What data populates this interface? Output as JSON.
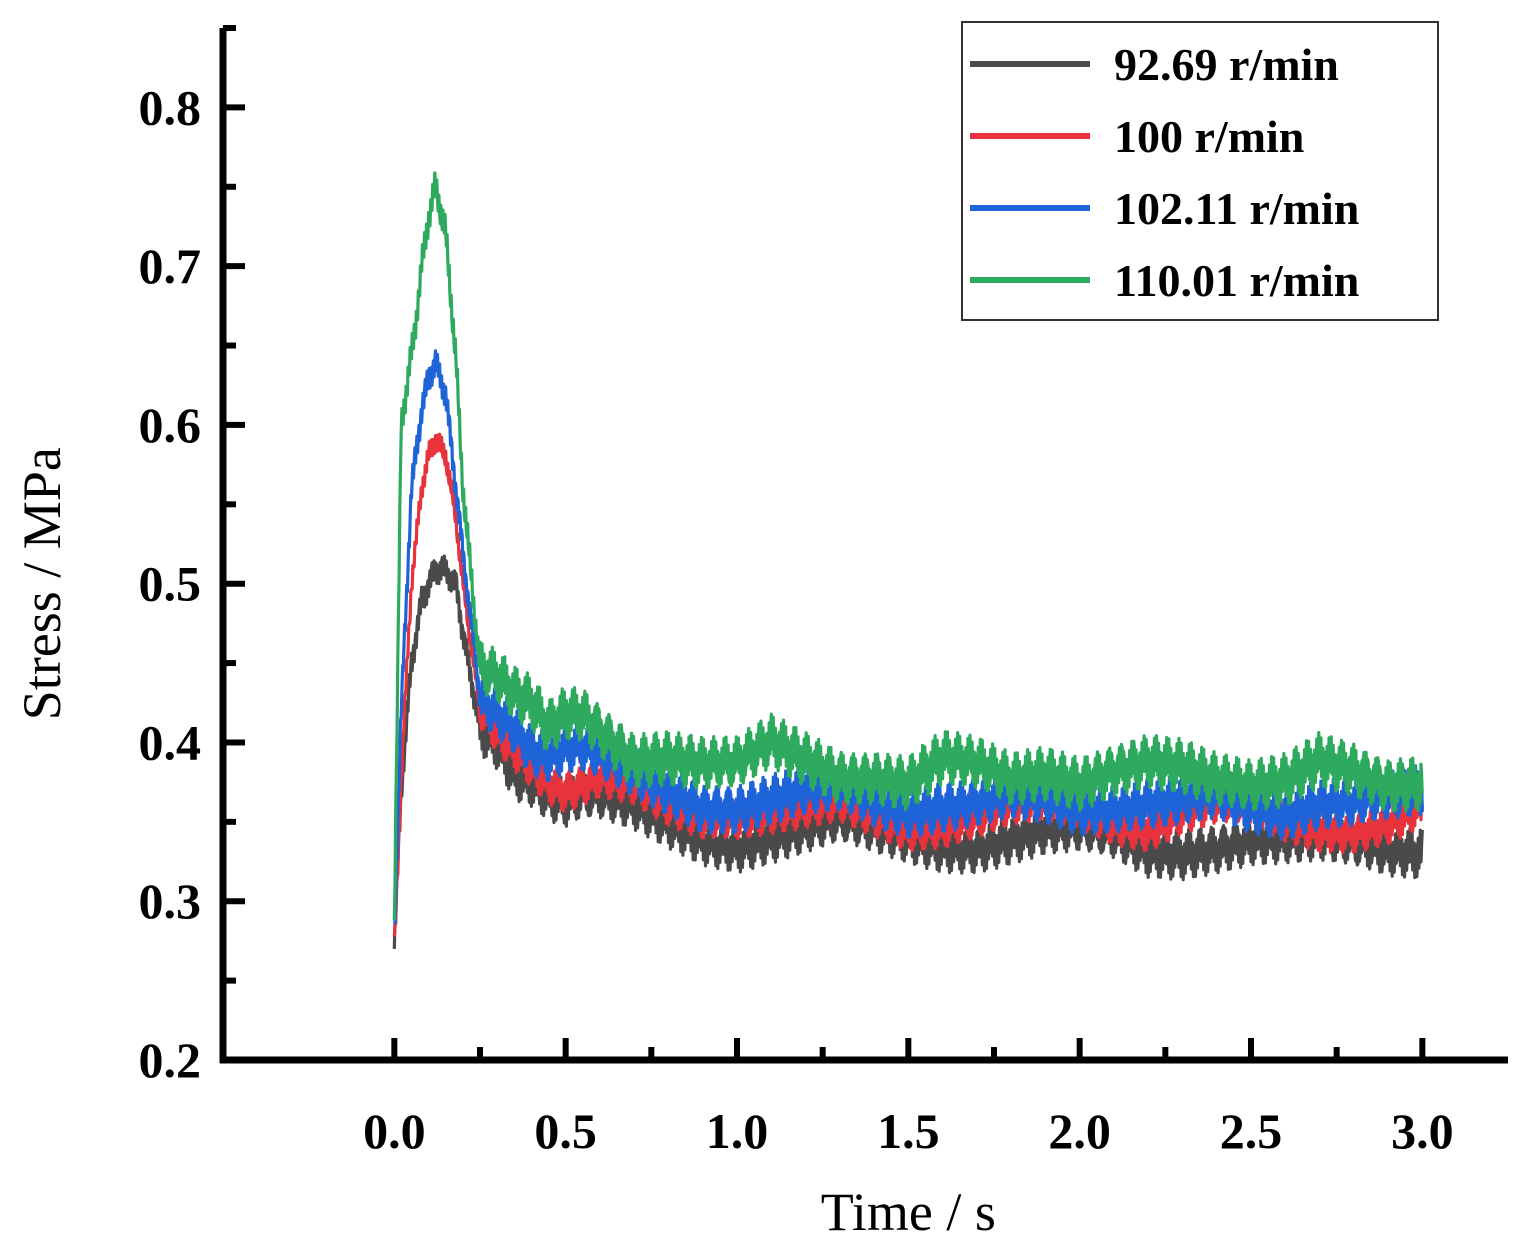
{
  "chart_data": {
    "type": "line",
    "title": "",
    "xlabel": "Time / s",
    "ylabel": "Stress / MPa",
    "xlim": [
      -0.5,
      3.25
    ],
    "ylim": [
      0.2,
      0.85
    ],
    "xticks": [
      0.0,
      0.5,
      1.0,
      1.5,
      2.0,
      2.5,
      3.0
    ],
    "xtick_labels": [
      "0.0",
      "0.5",
      "1.0",
      "1.5",
      "2.0",
      "2.5",
      "3.0"
    ],
    "yticks": [
      0.2,
      0.3,
      0.4,
      0.5,
      0.6,
      0.7,
      0.8
    ],
    "ytick_labels": [
      "0.2",
      "0.3",
      "0.4",
      "0.5",
      "0.6",
      "0.7",
      "0.8"
    ],
    "grid": false,
    "legend_position": "top-right",
    "series": [
      {
        "name": "92.69 r/min",
        "color": "#4a4a4a",
        "noise": 0.012,
        "x": [
          0.0,
          0.02,
          0.05,
          0.08,
          0.1,
          0.12,
          0.15,
          0.18,
          0.2,
          0.25,
          0.3,
          0.35,
          0.4,
          0.45,
          0.5,
          0.55,
          0.6,
          0.7,
          0.8,
          0.9,
          1.0,
          1.1,
          1.2,
          1.3,
          1.4,
          1.5,
          1.6,
          1.7,
          1.8,
          1.9,
          2.0,
          2.1,
          2.2,
          2.3,
          2.4,
          2.5,
          2.6,
          2.7,
          2.8,
          2.9,
          3.0
        ],
        "y": [
          0.27,
          0.37,
          0.45,
          0.49,
          0.5,
          0.51,
          0.51,
          0.5,
          0.47,
          0.41,
          0.4,
          0.38,
          0.375,
          0.365,
          0.36,
          0.365,
          0.365,
          0.36,
          0.35,
          0.34,
          0.335,
          0.34,
          0.345,
          0.35,
          0.345,
          0.34,
          0.335,
          0.335,
          0.34,
          0.345,
          0.345,
          0.34,
          0.33,
          0.33,
          0.335,
          0.34,
          0.34,
          0.34,
          0.335,
          0.33,
          0.33
        ]
      },
      {
        "name": "100 r/min",
        "color": "#e8333d",
        "noise": 0.01,
        "x": [
          0.0,
          0.02,
          0.05,
          0.08,
          0.1,
          0.12,
          0.15,
          0.18,
          0.2,
          0.25,
          0.3,
          0.35,
          0.4,
          0.45,
          0.5,
          0.55,
          0.6,
          0.7,
          0.8,
          0.9,
          1.0,
          1.1,
          1.2,
          1.3,
          1.4,
          1.5,
          1.6,
          1.7,
          1.8,
          1.9,
          2.0,
          2.1,
          2.2,
          2.3,
          2.4,
          2.5,
          2.6,
          2.7,
          2.8,
          2.9,
          3.0
        ],
        "y": [
          0.27,
          0.38,
          0.5,
          0.56,
          0.58,
          0.59,
          0.58,
          0.54,
          0.5,
          0.42,
          0.405,
          0.395,
          0.385,
          0.375,
          0.37,
          0.375,
          0.38,
          0.375,
          0.36,
          0.35,
          0.35,
          0.355,
          0.36,
          0.365,
          0.355,
          0.345,
          0.345,
          0.35,
          0.36,
          0.365,
          0.36,
          0.35,
          0.345,
          0.355,
          0.36,
          0.36,
          0.35,
          0.345,
          0.345,
          0.35,
          0.36
        ]
      },
      {
        "name": "102.11 r/min",
        "color": "#1e64d8",
        "noise": 0.012,
        "x": [
          0.0,
          0.02,
          0.05,
          0.08,
          0.1,
          0.12,
          0.15,
          0.18,
          0.2,
          0.25,
          0.3,
          0.35,
          0.4,
          0.45,
          0.5,
          0.55,
          0.6,
          0.7,
          0.8,
          0.9,
          1.0,
          1.1,
          1.2,
          1.3,
          1.4,
          1.5,
          1.6,
          1.7,
          1.8,
          1.9,
          2.0,
          2.1,
          2.2,
          2.3,
          2.4,
          2.5,
          2.6,
          2.7,
          2.8,
          2.9,
          3.0
        ],
        "y": [
          0.28,
          0.42,
          0.56,
          0.61,
          0.63,
          0.64,
          0.62,
          0.56,
          0.52,
          0.43,
          0.42,
          0.41,
          0.395,
          0.39,
          0.395,
          0.395,
          0.39,
          0.38,
          0.37,
          0.36,
          0.36,
          0.365,
          0.37,
          0.37,
          0.36,
          0.355,
          0.36,
          0.365,
          0.37,
          0.365,
          0.355,
          0.355,
          0.36,
          0.365,
          0.37,
          0.36,
          0.355,
          0.36,
          0.36,
          0.365,
          0.37
        ]
      },
      {
        "name": "110.01 r/min",
        "color": "#2eaa5e",
        "noise": 0.013,
        "x": [
          0.0,
          0.02,
          0.04,
          0.06,
          0.08,
          0.1,
          0.12,
          0.15,
          0.18,
          0.2,
          0.25,
          0.3,
          0.35,
          0.4,
          0.45,
          0.5,
          0.55,
          0.6,
          0.7,
          0.8,
          0.9,
          1.0,
          1.1,
          1.2,
          1.3,
          1.4,
          1.5,
          1.6,
          1.7,
          1.8,
          1.9,
          2.0,
          2.1,
          2.2,
          2.3,
          2.4,
          2.5,
          2.6,
          2.7,
          2.8,
          2.9,
          3.0
        ],
        "y": [
          0.29,
          0.6,
          0.63,
          0.66,
          0.7,
          0.73,
          0.75,
          0.72,
          0.64,
          0.56,
          0.445,
          0.44,
          0.43,
          0.425,
          0.41,
          0.42,
          0.42,
          0.41,
          0.39,
          0.39,
          0.385,
          0.385,
          0.4,
          0.39,
          0.38,
          0.38,
          0.375,
          0.39,
          0.385,
          0.375,
          0.38,
          0.375,
          0.385,
          0.39,
          0.385,
          0.375,
          0.37,
          0.375,
          0.39,
          0.385,
          0.375,
          0.375
        ]
      }
    ]
  }
}
